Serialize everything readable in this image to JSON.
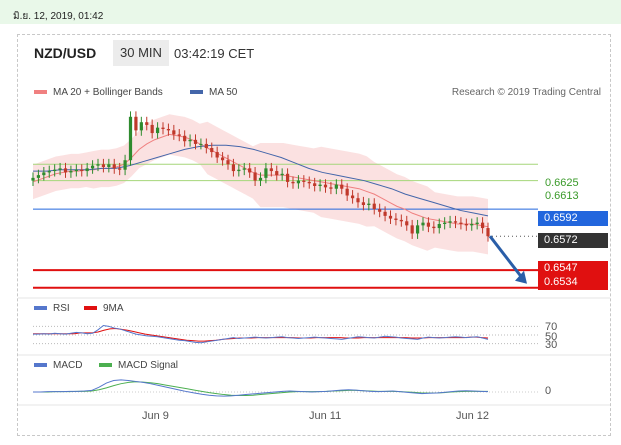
{
  "date_stamp": "มิ.ย. 12, 2019, 01:42",
  "header": {
    "symbol": "NZD/USD",
    "timeframe": "30 MIN",
    "time": "03:42:19 CET"
  },
  "credit": "Research © 2019 Trading Central",
  "colors": {
    "ma20": "#f08080",
    "ma50": "#4466aa",
    "bull": "#2e8b2e",
    "bear": "#c0392b",
    "support": "#e01010",
    "resistance": "#8bc34a",
    "pivot": "#2266dd",
    "last": "#333333",
    "rsi": "#5577cc",
    "rsi9": "#e01010",
    "macd": "#5577cc",
    "macd_signal": "#4caf50"
  },
  "chart_data": [
    {
      "type": "candlestick",
      "title": "NZD/USD 30 MIN",
      "legend": [
        {
          "name": "MA 20 + Bollinger Bands",
          "color": "#f08080"
        },
        {
          "name": "MA 50",
          "color": "#4466aa"
        }
      ],
      "x_ticks": [
        "Jun 9",
        "Jun 11",
        "Jun 12"
      ],
      "ylim": [
        0.6525,
        0.6665
      ],
      "levels": [
        {
          "value": 0.6625,
          "label": "0.6625",
          "kind": "resistance"
        },
        {
          "value": 0.6613,
          "label": "0.6613",
          "kind": "resistance"
        },
        {
          "value": 0.6592,
          "label": "0.6592",
          "kind": "pivot"
        },
        {
          "value": 0.6572,
          "label": "0.6572",
          "kind": "last"
        },
        {
          "value": 0.6547,
          "label": "0.6547",
          "kind": "support"
        },
        {
          "value": 0.6534,
          "label": "0.6534",
          "kind": "support"
        }
      ],
      "close": [
        0.6615,
        0.6617,
        0.6619,
        0.662,
        0.6621,
        0.6622,
        0.6619,
        0.662,
        0.6621,
        0.662,
        0.6622,
        0.6624,
        0.6625,
        0.6623,
        0.6625,
        0.6622,
        0.6621,
        0.6628,
        0.666,
        0.665,
        0.6656,
        0.6654,
        0.6648,
        0.6652,
        0.6651,
        0.665,
        0.6647,
        0.6646,
        0.6642,
        0.6643,
        0.664,
        0.664,
        0.6637,
        0.6634,
        0.663,
        0.6628,
        0.6625,
        0.662,
        0.6621,
        0.6622,
        0.6619,
        0.6613,
        0.6615,
        0.6622,
        0.662,
        0.6617,
        0.6618,
        0.6612,
        0.6611,
        0.6613,
        0.6612,
        0.6611,
        0.6609,
        0.661,
        0.6608,
        0.6607,
        0.661,
        0.6607,
        0.6602,
        0.66,
        0.6597,
        0.6595,
        0.6596,
        0.6592,
        0.659,
        0.6587,
        0.6585,
        0.6584,
        0.6583,
        0.658,
        0.6574,
        0.658,
        0.6582,
        0.6579,
        0.6578,
        0.6581,
        0.6582,
        0.6583,
        0.6582,
        0.6581,
        0.658,
        0.6581,
        0.6582,
        0.6578,
        0.6572
      ],
      "ma20": [
        0.6612,
        0.6614,
        0.6616,
        0.6618,
        0.6619,
        0.662,
        0.662,
        0.6621,
        0.6621,
        0.6622,
        0.6622,
        0.6623,
        0.6625,
        0.663,
        0.6636,
        0.664,
        0.6643,
        0.6645,
        0.6647,
        0.6646,
        0.6645,
        0.6643,
        0.664,
        0.6637,
        0.6634,
        0.6631,
        0.6628,
        0.6625,
        0.6622,
        0.6619,
        0.6617,
        0.6617,
        0.6617,
        0.6617,
        0.6616,
        0.6615,
        0.6614,
        0.6613,
        0.6612,
        0.6611,
        0.661,
        0.6609,
        0.6608,
        0.6607,
        0.6605,
        0.6603,
        0.66,
        0.6597,
        0.6594,
        0.6592,
        0.6589,
        0.6587,
        0.6585,
        0.6584,
        0.6583,
        0.6582,
        0.6581,
        0.6581,
        0.6581,
        0.658,
        0.6579
      ],
      "ma50": [
        0.662,
        0.662,
        0.6621,
        0.6621,
        0.6621,
        0.6622,
        0.6622,
        0.6624,
        0.6627,
        0.663,
        0.6633,
        0.6636,
        0.6638,
        0.6639,
        0.6639,
        0.6638,
        0.6636,
        0.6633,
        0.663,
        0.6626,
        0.6622,
        0.6619,
        0.6617,
        0.6615,
        0.6613,
        0.661,
        0.6607,
        0.6603,
        0.66,
        0.6597,
        0.6594,
        0.6591,
        0.6589,
        0.6587
      ],
      "arrow": {
        "from": 0.6572,
        "to": 0.6537
      }
    },
    {
      "type": "line",
      "legend": [
        {
          "name": "RSI",
          "color": "#5577cc"
        },
        {
          "name": "9MA",
          "color": "#e01010"
        }
      ],
      "y_ticks": [
        "70",
        "50",
        "30"
      ],
      "rsi": [
        52,
        52,
        53,
        52,
        54,
        53,
        52,
        54,
        56,
        55,
        53,
        54,
        62,
        72,
        70,
        66,
        64,
        60,
        56,
        52,
        50,
        48,
        47,
        46,
        44,
        42,
        40,
        38,
        37,
        35,
        33,
        32,
        34,
        36,
        38,
        40,
        42,
        44,
        42,
        43,
        44,
        45,
        44,
        43,
        44,
        45,
        46,
        44,
        43,
        42,
        43,
        44,
        45,
        44,
        43,
        42,
        41,
        40,
        42,
        44,
        46,
        45,
        44,
        43,
        45,
        47,
        46,
        45,
        43,
        42,
        41,
        40,
        43,
        45,
        44,
        43,
        44,
        45,
        46,
        45,
        44,
        45,
        46,
        43,
        40
      ],
      "rsi_ma": [
        53,
        53,
        53,
        53,
        53,
        53,
        53,
        53,
        55,
        55,
        55,
        57,
        61,
        64,
        65,
        63,
        61,
        58,
        55,
        52,
        50,
        48,
        46,
        44,
        42,
        40,
        38,
        37,
        36,
        36,
        37,
        38,
        40,
        41,
        42,
        43,
        43,
        43,
        44,
        44,
        44,
        44,
        44,
        44,
        44,
        43,
        43,
        43,
        44,
        44,
        44,
        44,
        44,
        43,
        43,
        43,
        44,
        44,
        44,
        44,
        44,
        44,
        44,
        44,
        43,
        43,
        43,
        44,
        44,
        44,
        44,
        44,
        44,
        44,
        45,
        45,
        44,
        43
      ]
    },
    {
      "type": "line",
      "legend": [
        {
          "name": "MACD",
          "color": "#5577cc"
        },
        {
          "name": "MACD Signal",
          "color": "#4caf50"
        }
      ],
      "y_ticks": [
        "0"
      ],
      "macd": [
        0,
        0,
        0.1,
        0.1,
        0.1,
        0.2,
        0.2,
        0.3,
        0.5,
        1.5,
        2.8,
        3.6,
        3.8,
        3.6,
        3.3,
        3,
        2.6,
        2.1,
        1.6,
        1.1,
        0.6,
        0.1,
        -0.3,
        -0.7,
        -1,
        -1.2,
        -1.3,
        -1.2,
        -1,
        -0.8,
        -0.6,
        -0.4,
        -0.2,
        0,
        0.2,
        0.3,
        0.2,
        0.1,
        0,
        0.1,
        0.2,
        0.4,
        0.6,
        0.7,
        0.6,
        0.4,
        0.2,
        0.1,
        0.2,
        0.3,
        0.1,
        -0.1,
        -0.3,
        -0.5,
        -0.4,
        -0.3,
        -0.1,
        0.1,
        0.3,
        0.4,
        0.3,
        0.2,
        0.1
      ],
      "signal": [
        0,
        0,
        0,
        0.1,
        0.1,
        0.1,
        0.2,
        0.2,
        0.3,
        0.7,
        1.3,
        2,
        2.6,
        3,
        3.2,
        3.1,
        2.9,
        2.6,
        2.2,
        1.8,
        1.4,
        1,
        0.6,
        0.2,
        -0.2,
        -0.5,
        -0.8,
        -1,
        -1.1,
        -1.1,
        -1,
        -0.8,
        -0.6,
        -0.4,
        -0.2,
        0,
        0.1,
        0.1,
        0.1,
        0.1,
        0.2,
        0.3,
        0.4,
        0.5,
        0.5,
        0.4,
        0.3,
        0.2,
        0.2,
        0.2,
        0.1,
        0,
        -0.1,
        -0.3,
        -0.3,
        -0.3,
        -0.2,
        0,
        0.1,
        0.2,
        0.2,
        0.2,
        0.2
      ]
    }
  ]
}
